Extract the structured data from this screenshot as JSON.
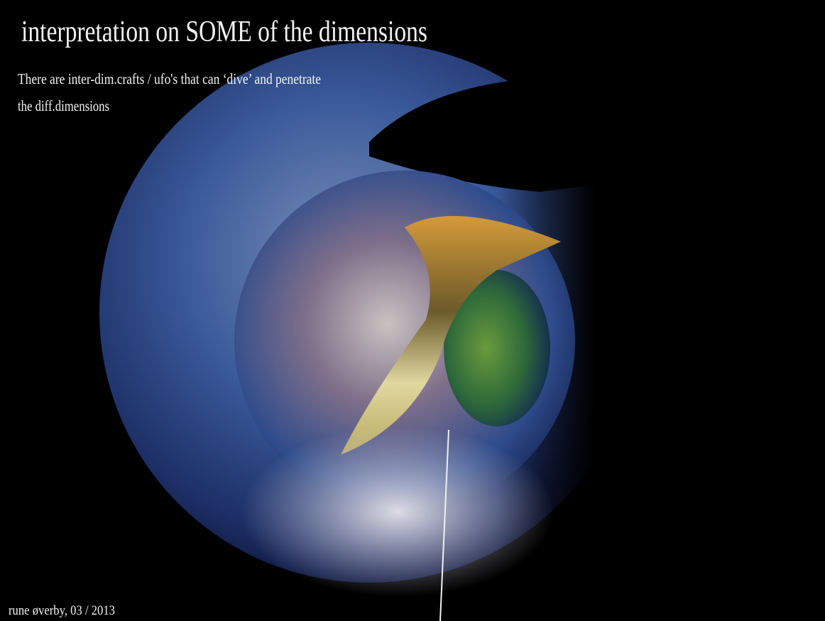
{
  "title": "interpretation on SOME of the dimensions",
  "caption": [
    "There are  inter-dim.crafts / ufo's that can ‘dive’ and penetrate",
    "the diff.dimensions"
  ],
  "credit": "rune øverby, 03 / 2013"
}
